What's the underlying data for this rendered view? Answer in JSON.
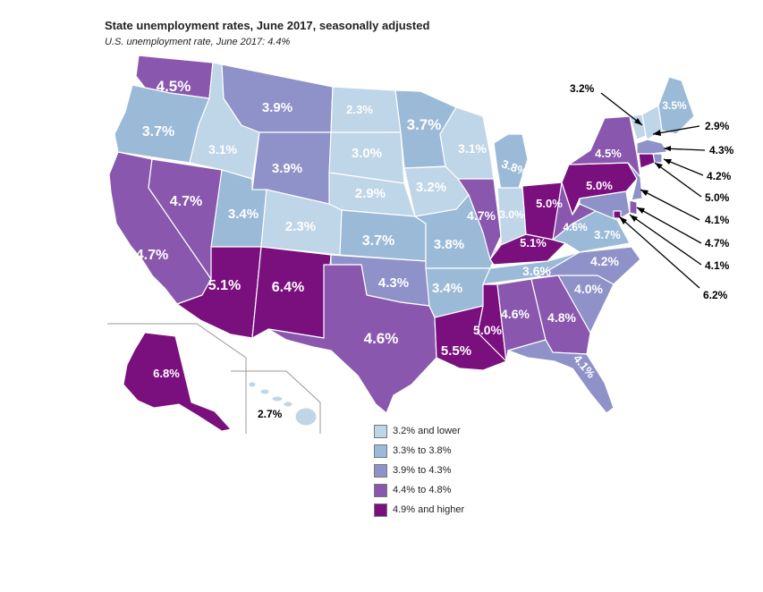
{
  "title": "State unemployment rates, June 2017, seasonally adjusted",
  "subtitle": "U.S. unemployment rate, June 2017: 4.4%",
  "colors": {
    "c1": "#bfd5e8",
    "c2": "#9bbad8",
    "c3": "#8e92c8",
    "c4": "#8a57ae",
    "c5": "#7a0f7e"
  },
  "legend": [
    {
      "class": "c1",
      "label": "3.2% and lower"
    },
    {
      "class": "c2",
      "label": "3.3% to 3.8%"
    },
    {
      "class": "c3",
      "label": "3.9% to 4.3%"
    },
    {
      "class": "c4",
      "label": "4.4% to 4.8%"
    },
    {
      "class": "c5",
      "label": "4.9% and higher"
    }
  ],
  "states": {
    "WA": {
      "rate": "4.5%",
      "class": "c4"
    },
    "OR": {
      "rate": "3.7%",
      "class": "c2"
    },
    "CA": {
      "rate": "4.7%",
      "class": "c4"
    },
    "NV": {
      "rate": "4.7%",
      "class": "c4"
    },
    "ID": {
      "rate": "3.1%",
      "class": "c1"
    },
    "MT": {
      "rate": "3.9%",
      "class": "c3"
    },
    "WY": {
      "rate": "3.9%",
      "class": "c3"
    },
    "UT": {
      "rate": "3.4%",
      "class": "c2"
    },
    "AZ": {
      "rate": "5.1%",
      "class": "c5"
    },
    "CO": {
      "rate": "2.3%",
      "class": "c1"
    },
    "NM": {
      "rate": "6.4%",
      "class": "c5"
    },
    "ND": {
      "rate": "2.3%",
      "class": "c1"
    },
    "SD": {
      "rate": "3.0%",
      "class": "c1"
    },
    "NE": {
      "rate": "2.9%",
      "class": "c1"
    },
    "KS": {
      "rate": "3.7%",
      "class": "c2"
    },
    "OK": {
      "rate": "4.3%",
      "class": "c3"
    },
    "TX": {
      "rate": "4.6%",
      "class": "c4"
    },
    "MN": {
      "rate": "3.7%",
      "class": "c2"
    },
    "IA": {
      "rate": "3.2%",
      "class": "c1"
    },
    "MO": {
      "rate": "3.8%",
      "class": "c2"
    },
    "AR": {
      "rate": "3.4%",
      "class": "c2"
    },
    "LA": {
      "rate": "5.5%",
      "class": "c5"
    },
    "WI": {
      "rate": "3.1%",
      "class": "c1"
    },
    "IL": {
      "rate": "4.7%",
      "class": "c4"
    },
    "MI": {
      "rate": "3.8%",
      "class": "c2"
    },
    "IN": {
      "rate": "3.0%",
      "class": "c1"
    },
    "OH": {
      "rate": "5.0%",
      "class": "c5"
    },
    "KY": {
      "rate": "5.1%",
      "class": "c5"
    },
    "TN": {
      "rate": "3.6%",
      "class": "c2"
    },
    "MS": {
      "rate": "5.0%",
      "class": "c5"
    },
    "AL": {
      "rate": "4.6%",
      "class": "c4"
    },
    "GA": {
      "rate": "4.8%",
      "class": "c4"
    },
    "FL": {
      "rate": "4.1%",
      "class": "c3"
    },
    "SC": {
      "rate": "4.0%",
      "class": "c3"
    },
    "NC": {
      "rate": "4.2%",
      "class": "c3"
    },
    "VA": {
      "rate": "3.7%",
      "class": "c2"
    },
    "WV": {
      "rate": "4.6%",
      "class": "c4"
    },
    "PA": {
      "rate": "5.0%",
      "class": "c5"
    },
    "NY": {
      "rate": "4.5%",
      "class": "c4"
    },
    "ME": {
      "rate": "3.5%",
      "class": "c2"
    },
    "VT": {
      "rate": "3.2%",
      "class": "c1"
    },
    "NH": {
      "rate": "2.9%",
      "class": "c1"
    },
    "MA": {
      "rate": "4.3%",
      "class": "c3"
    },
    "RI": {
      "rate": "4.2%",
      "class": "c3"
    },
    "CT": {
      "rate": "5.0%",
      "class": "c5"
    },
    "NJ": {
      "rate": "4.1%",
      "class": "c3"
    },
    "DE": {
      "rate": "4.7%",
      "class": "c4"
    },
    "MD": {
      "rate": "4.1%",
      "class": "c3"
    },
    "DC": {
      "rate": "6.2%",
      "class": "c5"
    },
    "AK": {
      "rate": "6.8%",
      "class": "c5"
    },
    "HI": {
      "rate": "2.7%",
      "class": "c1"
    }
  }
}
